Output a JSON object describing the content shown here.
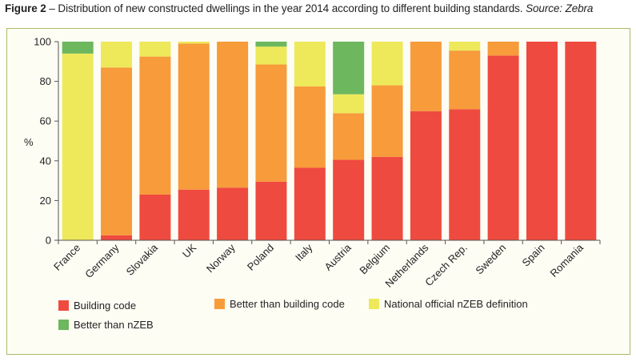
{
  "caption": {
    "figure_label": "Figure 2",
    "text": " – Distribution of new constructed dwellings in the year 2014 according to different building standards. ",
    "source": "Source: Zebra"
  },
  "colors": {
    "frame_border": "#a9bc63",
    "background": "#fdfdf4"
  },
  "chart_data": {
    "type": "bar",
    "stacked": true,
    "categories": [
      "France",
      "Germany",
      "Slovakia",
      "UK",
      "Norway",
      "Poland",
      "Italy",
      "Austria",
      "Belgium",
      "Netherlands",
      "Czech Rep.",
      "Sweden",
      "Spain",
      "Romania"
    ],
    "series": [
      {
        "name": "Building code",
        "color": "#ef4a3f",
        "values": [
          0,
          2.5,
          23,
          25.5,
          26.5,
          29.5,
          36.5,
          40.5,
          42,
          65,
          66,
          93,
          100,
          100
        ]
      },
      {
        "name": "Better than building code",
        "color": "#f79b3b",
        "values": [
          0,
          84.5,
          69.5,
          73.5,
          73.5,
          59,
          41,
          23.5,
          36,
          35,
          29.5,
          7,
          0,
          0
        ]
      },
      {
        "name": "National official nZEB definition",
        "color": "#eee95a",
        "values": [
          94,
          13,
          7.5,
          1,
          0,
          9,
          22.5,
          9.5,
          22,
          0,
          4.5,
          0,
          0,
          0
        ]
      },
      {
        "name": "Better than nZEB",
        "color": "#6db75e",
        "values": [
          6,
          0,
          0,
          0,
          0,
          2.5,
          0,
          26.5,
          0,
          0,
          0,
          0,
          0,
          0
        ]
      }
    ],
    "xlabel": "",
    "ylabel": "%",
    "ylim": [
      0,
      100
    ],
    "yticks": [
      0,
      20,
      40,
      60,
      80,
      100
    ],
    "grid": false,
    "legend_position": "bottom"
  }
}
